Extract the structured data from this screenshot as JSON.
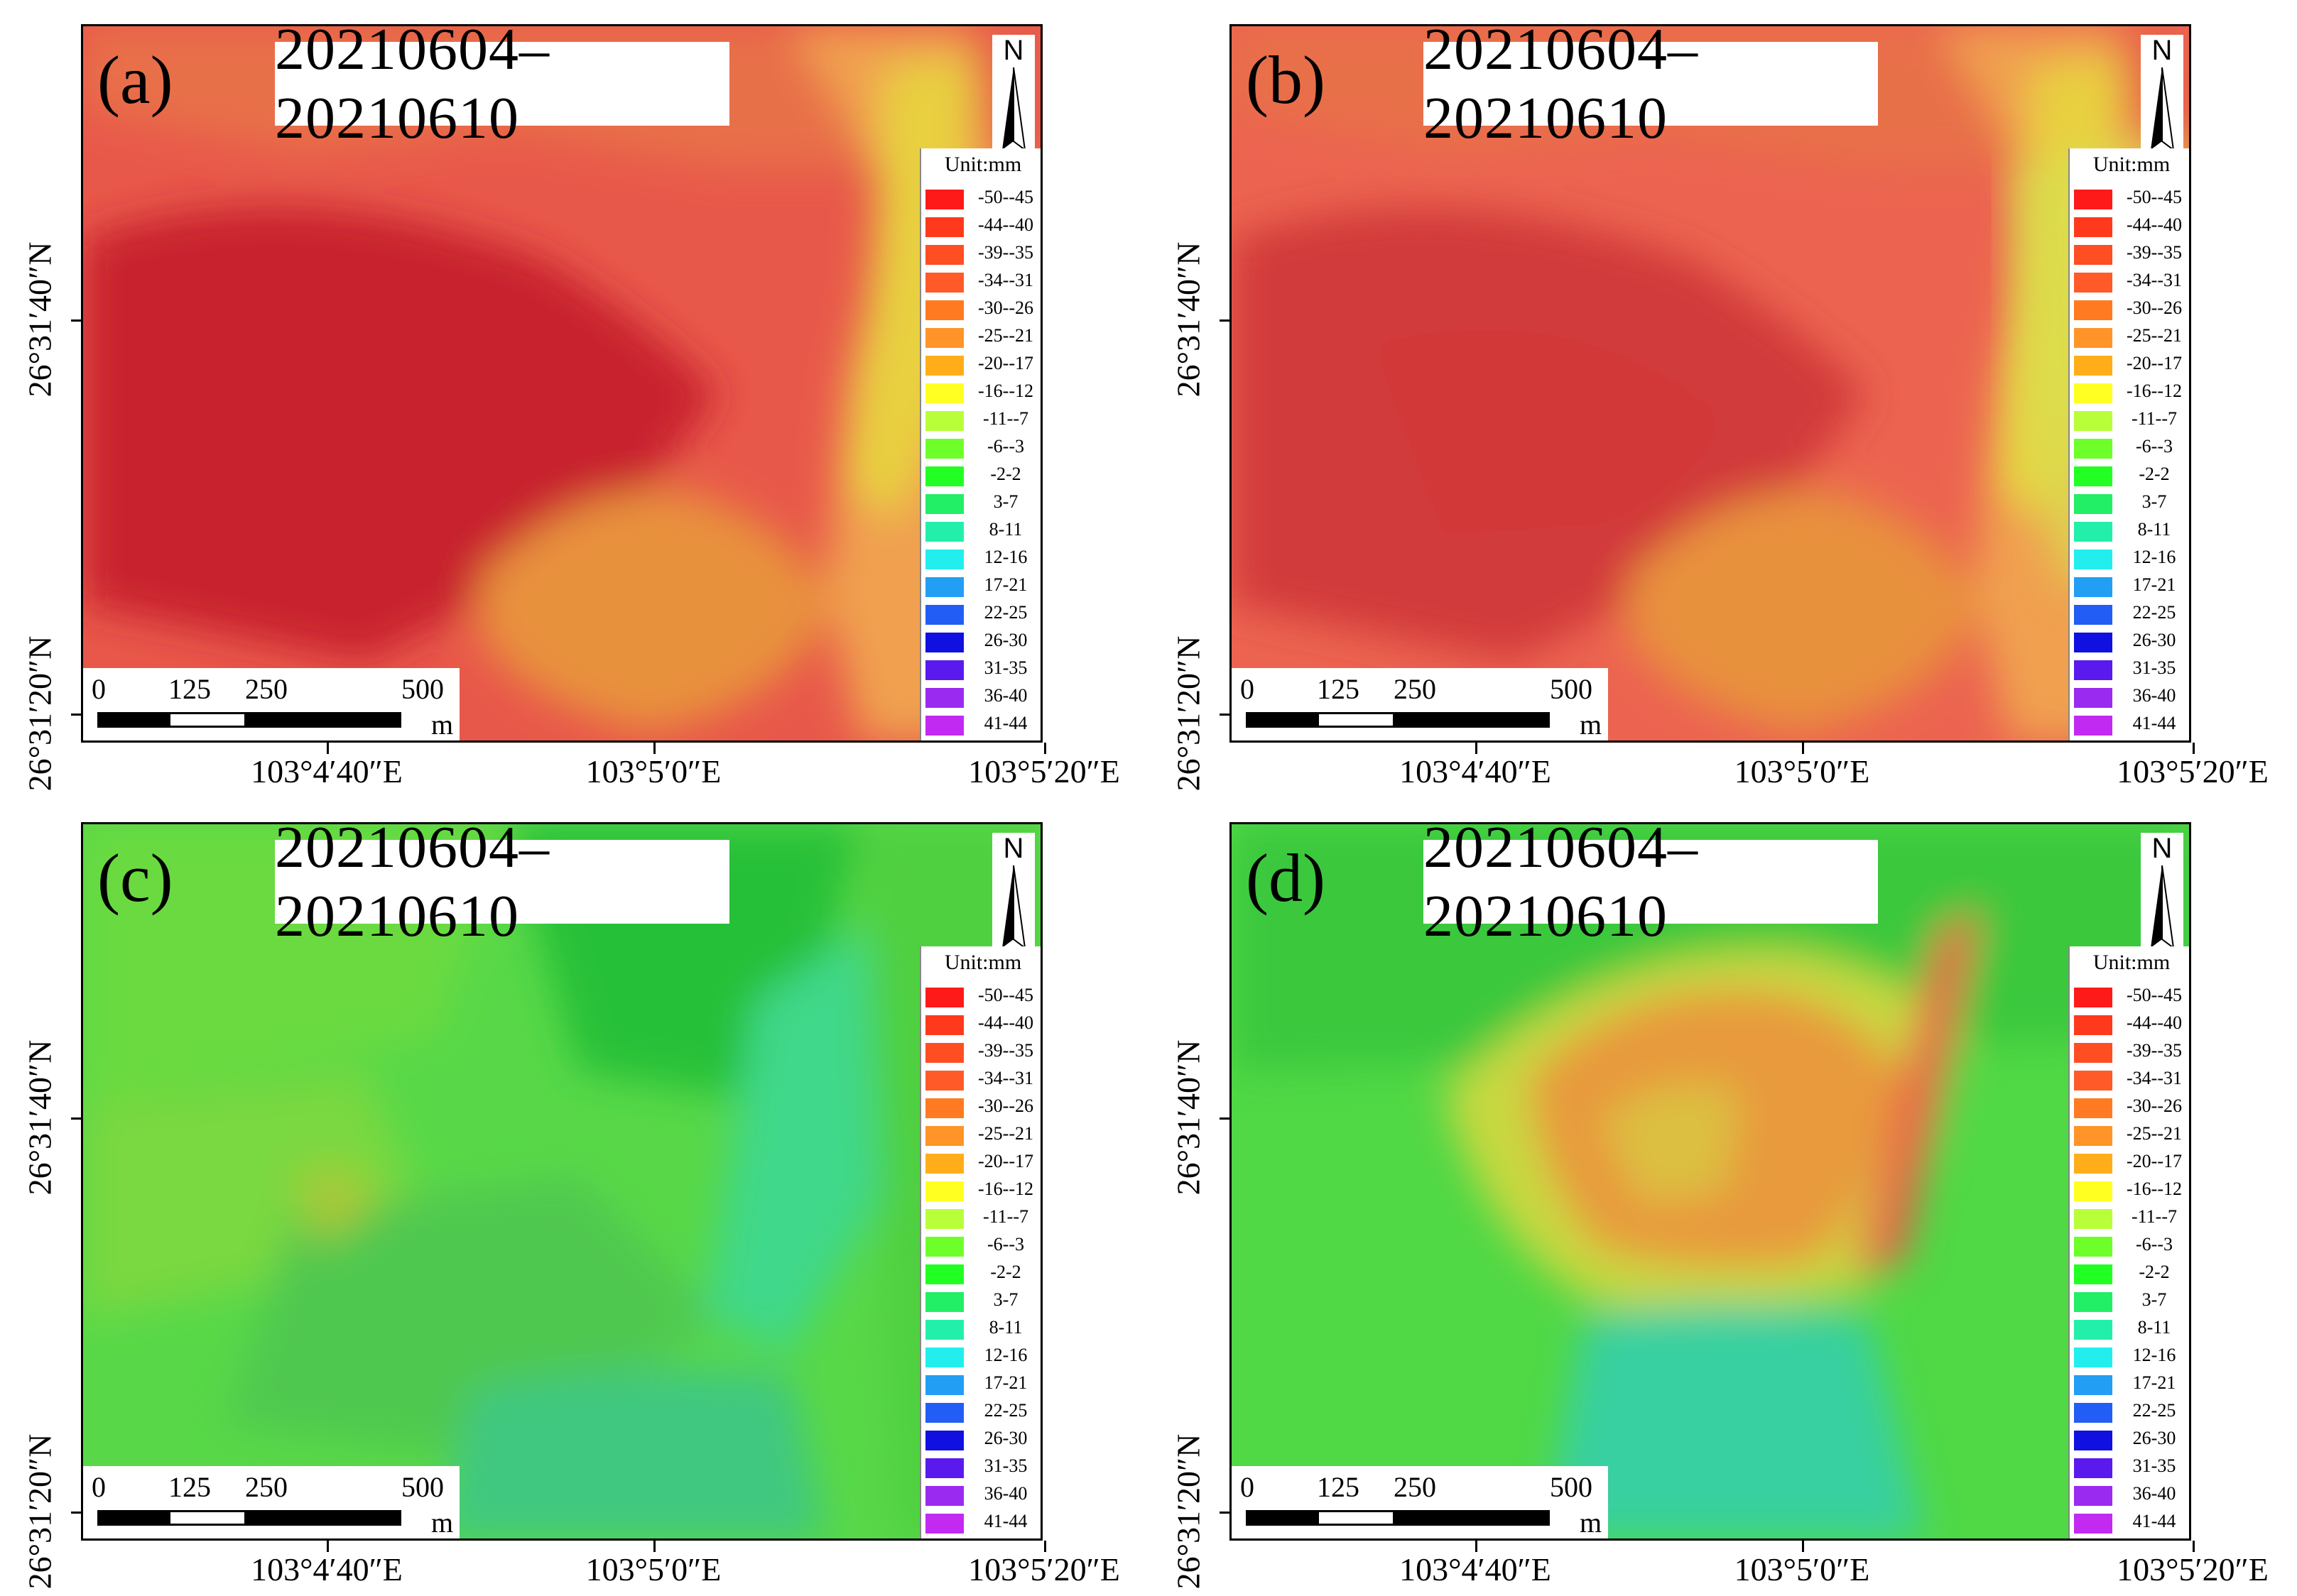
{
  "legend": {
    "title": "Unit:mm",
    "items": [
      {
        "label": "-50--45",
        "color": "#ff1a1a"
      },
      {
        "label": "-44--40",
        "color": "#ff3a1c"
      },
      {
        "label": "-39--35",
        "color": "#ff4e22"
      },
      {
        "label": "-34--31",
        "color": "#ff5a28"
      },
      {
        "label": "-30--26",
        "color": "#ff7a20"
      },
      {
        "label": "-25--21",
        "color": "#ff9428"
      },
      {
        "label": "-20--17",
        "color": "#ffae1a"
      },
      {
        "label": "-16--12",
        "color": "#ffff22"
      },
      {
        "label": "-11--7",
        "color": "#b8ff3a"
      },
      {
        "label": "-6--3",
        "color": "#6eff2a"
      },
      {
        "label": "-2-2",
        "color": "#22ff22"
      },
      {
        "label": "3-7",
        "color": "#22ee66"
      },
      {
        "label": "8-11",
        "color": "#22f0aa"
      },
      {
        "label": "12-16",
        "color": "#22eeee"
      },
      {
        "label": "17-21",
        "color": "#229ef5"
      },
      {
        "label": "22-25",
        "color": "#225ef5"
      },
      {
        "label": "26-30",
        "color": "#1010e0"
      },
      {
        "label": "31-35",
        "color": "#5a1aee"
      },
      {
        "label": "36-40",
        "color": "#9a2af0"
      },
      {
        "label": "41-44",
        "color": "#c22af2"
      }
    ]
  },
  "scalebar": {
    "ticks": [
      "0",
      "125",
      "250",
      "500"
    ],
    "unit": "m"
  },
  "axes": {
    "x_ticks": [
      "103°4′40″E",
      "103°5′0″E",
      "103°5′20″E"
    ],
    "y_ticks": [
      "26°31′40″N",
      "26°31′20″N"
    ]
  },
  "north_label": "N",
  "panels": [
    {
      "label": "(a)",
      "date": "20210604–20210610",
      "scheme": "subsidence"
    },
    {
      "label": "(b)",
      "date": "20210604–20210610",
      "scheme": "subsidence-mild"
    },
    {
      "label": "(c)",
      "date": "20210604–20210610",
      "scheme": "stable"
    },
    {
      "label": "(d)",
      "date": "20210604–20210610",
      "scheme": "local-subsidence"
    }
  ]
}
